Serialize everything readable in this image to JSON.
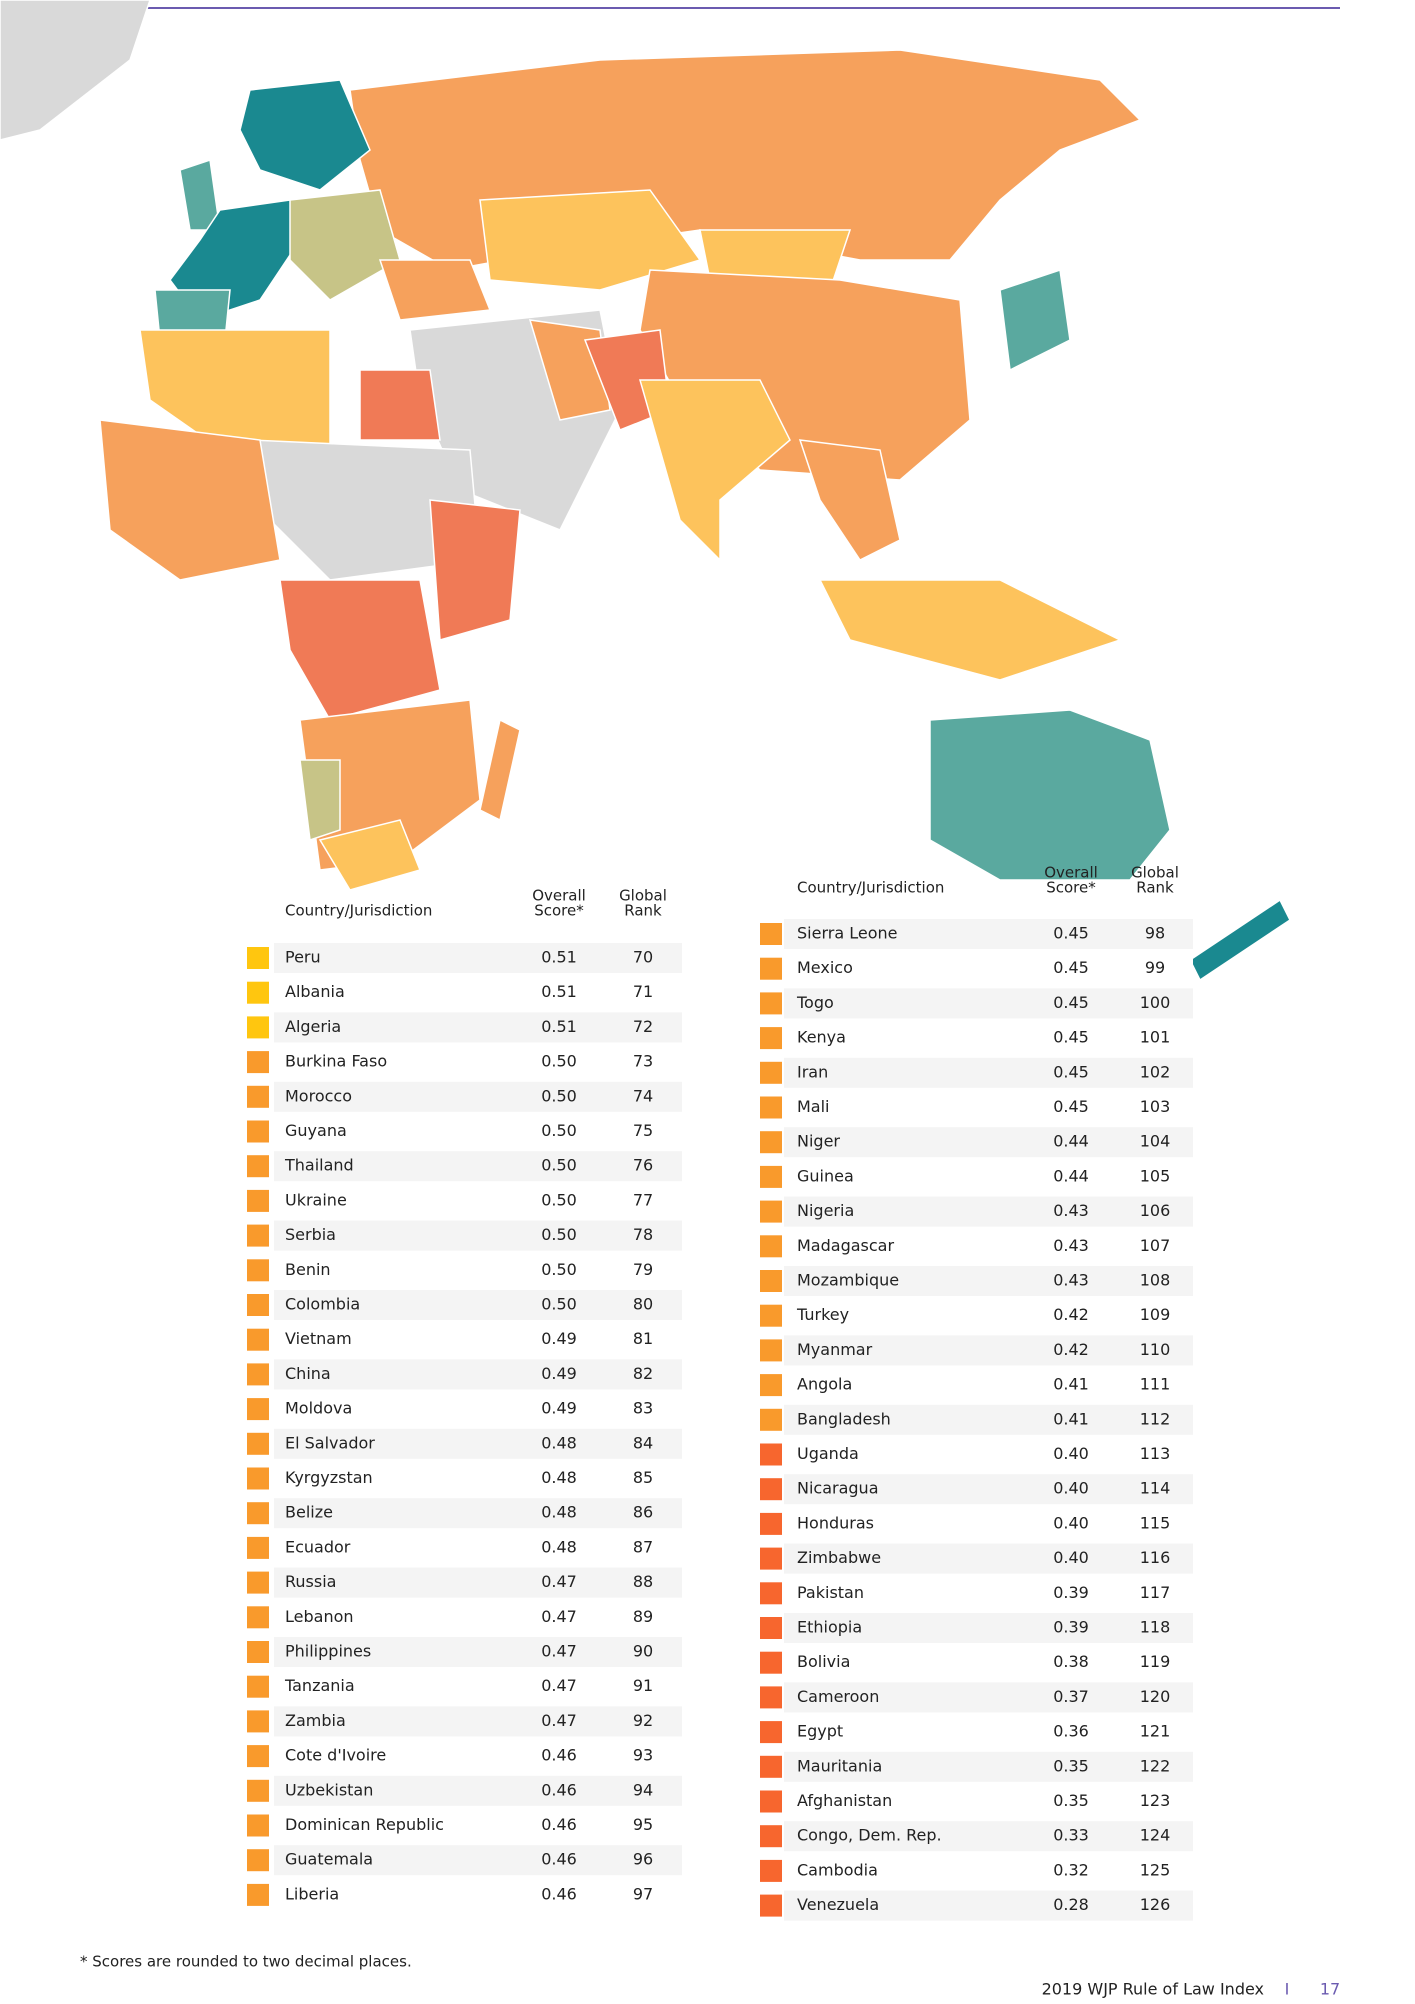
{
  "tables": [
    {
      "headers": [
        [
          "Country/Jurisdiction"
        ],
        [
          "Overall",
          "Score*"
        ],
        [
          "Global",
          "Rank"
        ]
      ],
      "rows": [
        {
          "country": "Peru",
          "score": "0.51",
          "rank": "70",
          "color": "#ffc60f"
        },
        {
          "country": "Albania",
          "score": "0.51",
          "rank": "71",
          "color": "#ffc60f"
        },
        {
          "country": "Algeria",
          "score": "0.51",
          "rank": "72",
          "color": "#ffc60f"
        },
        {
          "country": "Burkina Faso",
          "score": "0.50",
          "rank": "73",
          "color": "#f99a2c"
        },
        {
          "country": "Morocco",
          "score": "0.50",
          "rank": "74",
          "color": "#f99a2c"
        },
        {
          "country": "Guyana",
          "score": "0.50",
          "rank": "75",
          "color": "#f99a2c"
        },
        {
          "country": "Thailand",
          "score": "0.50",
          "rank": "76",
          "color": "#f99a2c"
        },
        {
          "country": "Ukraine",
          "score": "0.50",
          "rank": "77",
          "color": "#f99a2c"
        },
        {
          "country": "Serbia",
          "score": "0.50",
          "rank": "78",
          "color": "#f99a2c"
        },
        {
          "country": "Benin",
          "score": "0.50",
          "rank": "79",
          "color": "#f99a2c"
        },
        {
          "country": "Colombia",
          "score": "0.50",
          "rank": "80",
          "color": "#f99a2c"
        },
        {
          "country": "Vietnam",
          "score": "0.49",
          "rank": "81",
          "color": "#f99a2c"
        },
        {
          "country": "China",
          "score": "0.49",
          "rank": "82",
          "color": "#f99a2c"
        },
        {
          "country": "Moldova",
          "score": "0.49",
          "rank": "83",
          "color": "#f99a2c"
        },
        {
          "country": "El Salvador",
          "score": "0.48",
          "rank": "84",
          "color": "#f99a2c"
        },
        {
          "country": "Kyrgyzstan",
          "score": "0.48",
          "rank": "85",
          "color": "#f99a2c"
        },
        {
          "country": "Belize",
          "score": "0.48",
          "rank": "86",
          "color": "#f99a2c"
        },
        {
          "country": "Ecuador",
          "score": "0.48",
          "rank": "87",
          "color": "#f99a2c"
        },
        {
          "country": "Russia",
          "score": "0.47",
          "rank": "88",
          "color": "#f99a2c"
        },
        {
          "country": "Lebanon",
          "score": "0.47",
          "rank": "89",
          "color": "#f99a2c"
        },
        {
          "country": "Philippines",
          "score": "0.47",
          "rank": "90",
          "color": "#f99a2c"
        },
        {
          "country": "Tanzania",
          "score": "0.47",
          "rank": "91",
          "color": "#f99a2c"
        },
        {
          "country": "Zambia",
          "score": "0.47",
          "rank": "92",
          "color": "#f99a2c"
        },
        {
          "country": "Cote d'Ivoire",
          "score": "0.46",
          "rank": "93",
          "color": "#f99a2c"
        },
        {
          "country": "Uzbekistan",
          "score": "0.46",
          "rank": "94",
          "color": "#f99a2c"
        },
        {
          "country": "Dominican Republic",
          "score": "0.46",
          "rank": "95",
          "color": "#f99a2c"
        },
        {
          "country": "Guatemala",
          "score": "0.46",
          "rank": "96",
          "color": "#f99a2c"
        },
        {
          "country": "Liberia",
          "score": "0.46",
          "rank": "97",
          "color": "#f99a2c"
        }
      ]
    },
    {
      "headers": [
        [
          "Country/Jurisdiction"
        ],
        [
          "Overall",
          "Score*"
        ],
        [
          "Global",
          "Rank"
        ]
      ],
      "rows": [
        {
          "country": "Sierra Leone",
          "score": "0.45",
          "rank": "98",
          "color": "#f99a2c"
        },
        {
          "country": "Mexico",
          "score": "0.45",
          "rank": "99",
          "color": "#f99a2c"
        },
        {
          "country": "Togo",
          "score": "0.45",
          "rank": "100",
          "color": "#f99a2c"
        },
        {
          "country": "Kenya",
          "score": "0.45",
          "rank": "101",
          "color": "#f99a2c"
        },
        {
          "country": "Iran",
          "score": "0.45",
          "rank": "102",
          "color": "#f99a2c"
        },
        {
          "country": "Mali",
          "score": "0.45",
          "rank": "103",
          "color": "#f99a2c"
        },
        {
          "country": "Niger",
          "score": "0.44",
          "rank": "104",
          "color": "#f99a2c"
        },
        {
          "country": "Guinea",
          "score": "0.44",
          "rank": "105",
          "color": "#f99a2c"
        },
        {
          "country": "Nigeria",
          "score": "0.43",
          "rank": "106",
          "color": "#f99a2c"
        },
        {
          "country": "Madagascar",
          "score": "0.43",
          "rank": "107",
          "color": "#f99a2c"
        },
        {
          "country": "Mozambique",
          "score": "0.43",
          "rank": "108",
          "color": "#f99a2c"
        },
        {
          "country": "Turkey",
          "score": "0.42",
          "rank": "109",
          "color": "#f99a2c"
        },
        {
          "country": "Myanmar",
          "score": "0.42",
          "rank": "110",
          "color": "#f99a2c"
        },
        {
          "country": "Angola",
          "score": "0.41",
          "rank": "111",
          "color": "#f99a2c"
        },
        {
          "country": "Bangladesh",
          "score": "0.41",
          "rank": "112",
          "color": "#f99a2c"
        },
        {
          "country": "Uganda",
          "score": "0.40",
          "rank": "113",
          "color": "#f7662e"
        },
        {
          "country": "Nicaragua",
          "score": "0.40",
          "rank": "114",
          "color": "#f7662e"
        },
        {
          "country": "Honduras",
          "score": "0.40",
          "rank": "115",
          "color": "#f7662e"
        },
        {
          "country": "Zimbabwe",
          "score": "0.40",
          "rank": "116",
          "color": "#f7662e"
        },
        {
          "country": "Pakistan",
          "score": "0.39",
          "rank": "117",
          "color": "#f7662e"
        },
        {
          "country": "Ethiopia",
          "score": "0.39",
          "rank": "118",
          "color": "#f7662e"
        },
        {
          "country": "Bolivia",
          "score": "0.38",
          "rank": "119",
          "color": "#f7662e"
        },
        {
          "country": "Cameroon",
          "score": "0.37",
          "rank": "120",
          "color": "#f7662e"
        },
        {
          "country": "Egypt",
          "score": "0.36",
          "rank": "121",
          "color": "#f7662e"
        },
        {
          "country": "Mauritania",
          "score": "0.35",
          "rank": "122",
          "color": "#f7662e"
        },
        {
          "country": "Afghanistan",
          "score": "0.35",
          "rank": "123",
          "color": "#f7662e"
        },
        {
          "country": "Congo, Dem. Rep.",
          "score": "0.33",
          "rank": "124",
          "color": "#f7662e"
        },
        {
          "country": "Cambodia",
          "score": "0.32",
          "rank": "125",
          "color": "#f7662e"
        },
        {
          "country": "Venezuela",
          "score": "0.28",
          "rank": "126",
          "color": "#f7662e"
        }
      ]
    }
  ],
  "footnote": "* Scores are rounded to two decimal places.",
  "footer": {
    "title": "2019 WJP Rule of Law Index",
    "separator": "I",
    "page": "17"
  }
}
